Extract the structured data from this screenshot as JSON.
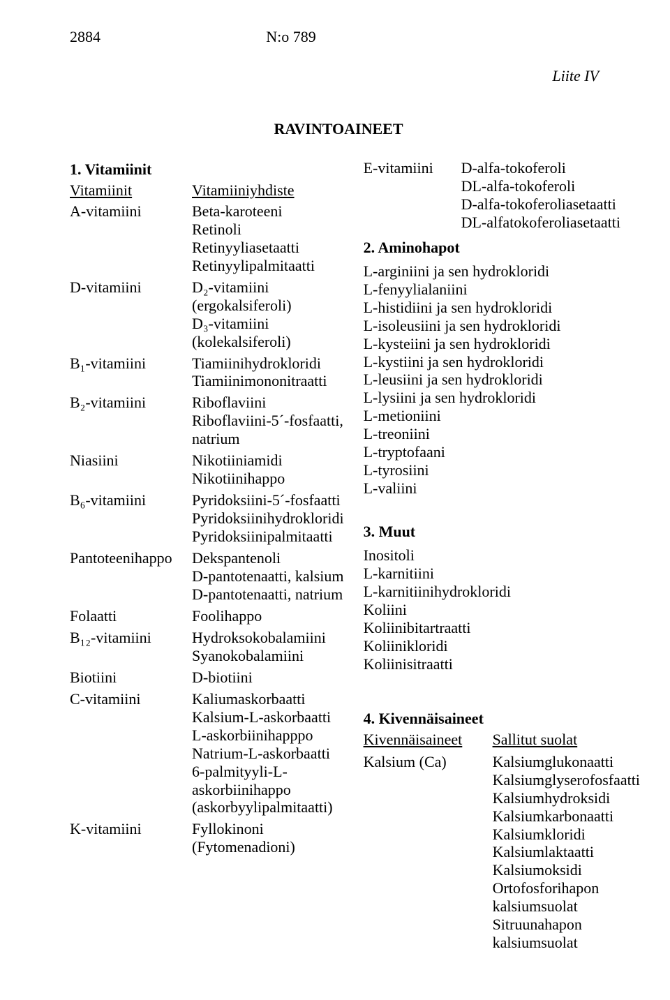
{
  "header": {
    "page_number": "2884",
    "doc_number": "N:o 789",
    "appendix": "Liite IV"
  },
  "title": "RAVINTOAINEET",
  "left": {
    "section1": "1. Vitamiinit",
    "col_label_left": "Vitamiinit",
    "col_label_right": "Vitamiiniyhdiste",
    "items": [
      {
        "name": "A-vitamiini",
        "compounds": [
          "Beta-karoteeni",
          "Retinoli",
          "Retinyyliasetaatti",
          "Retinyylipalmitaatti"
        ]
      },
      {
        "name": "D-vitamiini",
        "compounds": [
          "D₂-vitamiini",
          "(ergokalsiferoli)",
          "D₃-vitamiini",
          "(kolekalsiferoli)"
        ]
      },
      {
        "name": "B₁-vitamiini",
        "compounds": [
          "Tiamiinihydrokloridi",
          "Tiamiinimononitraatti"
        ]
      },
      {
        "name": "B₂-vitamiini",
        "compounds": [
          "Riboflaviini",
          "Riboflaviini-5´-fosfaatti,",
          "natrium"
        ]
      },
      {
        "name": "Niasiini",
        "compounds": [
          "Nikotiiniamidi",
          "Nikotiinihappo"
        ]
      },
      {
        "name": "B₆-vitamiini",
        "compounds": [
          "Pyridoksiini-5´-fosfaatti",
          "Pyridoksiinihydrokloridi",
          "Pyridoksiinipalmitaatti"
        ]
      },
      {
        "name": "Pantoteenihappo",
        "compounds": [
          "Dekspantenoli",
          "D-pantotenaatti, kalsium",
          "D-pantotenaatti, natrium"
        ]
      },
      {
        "name": "Folaatti",
        "compounds": [
          "Foolihappo"
        ]
      },
      {
        "name": "B₁₂-vitamiini",
        "compounds": [
          "Hydroksokobalamiini",
          "Syanokobalamiini"
        ]
      },
      {
        "name": "Biotiini",
        "compounds": [
          "D-biotiini"
        ]
      },
      {
        "name": "C-vitamiini",
        "compounds": [
          "Kaliumaskorbaatti",
          "Kalsium-L-askorbaatti",
          "L-askorbiinihapppo",
          "Natrium-L-askorbaatti",
          "6-palmityyli-L-",
          "askorbiinihappo",
          "(askorbyylipalmitaatti)"
        ]
      },
      {
        "name": "K-vitamiini",
        "compounds": [
          "Fyllokinoni",
          "(Fytomenadioni)"
        ]
      }
    ]
  },
  "right": {
    "e_vitamin": {
      "name": "E-vitamiini",
      "compounds": [
        "D-alfa-tokoferoli",
        "DL-alfa-tokoferoli",
        "D-alfa-tokoferoliasetaatti",
        "DL-alfatokoferoliasetaatti"
      ]
    },
    "section2": "2. Aminohapot",
    "amino": [
      "L-arginiini ja sen hydrokloridi",
      "L-fenyylialaniini",
      "L-histidiini ja sen hydrokloridi",
      "L-isoleusiini ja sen hydrokloridi",
      "L-kysteiini ja sen hydrokloridi",
      "L-kystiini ja sen hydrokloridi",
      "L-leusiini ja sen hydrokloridi",
      "L-lysiini ja sen hydrokloridi",
      "L-metioniini",
      "L-treoniini",
      "L-tryptofaani",
      "L-tyrosiini",
      "L-valiini"
    ],
    "section3": "3. Muut",
    "muut": [
      "Inositoli",
      "L-karnitiini",
      "L-karnitiinihydrokloridi",
      "Koliini",
      "Koliinibitartraatti",
      "Koliinikloridi",
      "Koliinisitraatti"
    ],
    "section4": "4. Kivennäisaineet",
    "kiv_col_left": "Kivennäisaineet",
    "kiv_col_right": "Sallitut suolat",
    "kiv_name": "Kalsium (Ca)",
    "kiv_vals": [
      "Kalsiumglukonaatti",
      "Kalsiumglyserofosfaatti",
      "Kalsiumhydroksidi",
      "Kalsiumkarbonaatti",
      "Kalsiumkloridi",
      "Kalsiumlaktaatti",
      "Kalsiumoksidi",
      "Ortofosforihapon",
      "kalsiumsuolat",
      "Sitruunahapon",
      "kalsiumsuolat"
    ]
  }
}
